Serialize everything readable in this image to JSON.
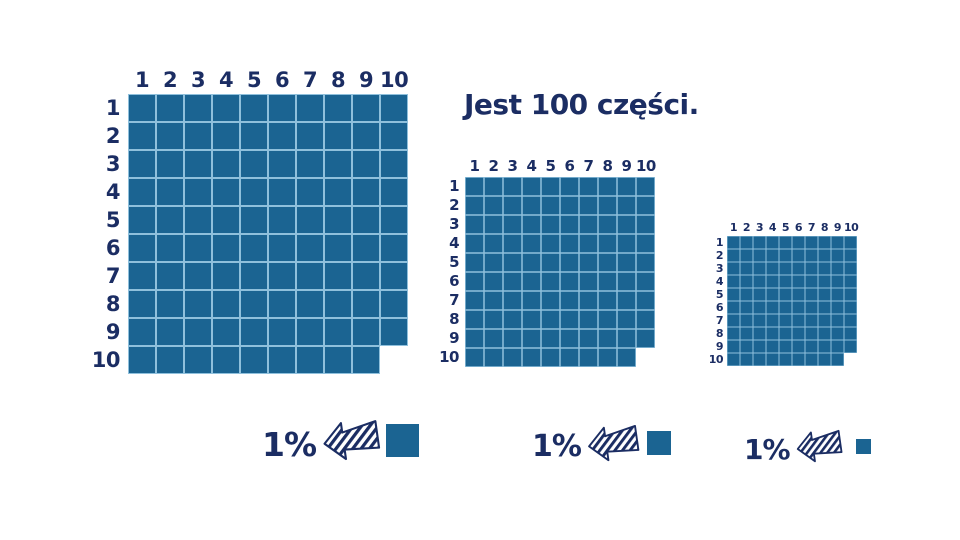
{
  "title": "Jest 100 części.",
  "colors": {
    "cell_blue": "#1b6492",
    "text_navy": "#1b2d63",
    "grid_line": "#8fc0dc"
  },
  "grids": [
    {
      "name": "large",
      "col_labels": [
        "1",
        "2",
        "3",
        "4",
        "5",
        "6",
        "7",
        "8",
        "9",
        "10"
      ],
      "row_labels": [
        "1",
        "2",
        "3",
        "4",
        "5",
        "6",
        "7",
        "8",
        "9",
        "10"
      ],
      "missing_cell": {
        "row": 10,
        "col": 10
      },
      "percent": {
        "label": "1%",
        "icon": "striped-arrow-left-icon"
      }
    },
    {
      "name": "medium",
      "col_labels": [
        "1",
        "2",
        "3",
        "4",
        "5",
        "6",
        "7",
        "8",
        "9",
        "10"
      ],
      "row_labels": [
        "1",
        "2",
        "3",
        "4",
        "5",
        "6",
        "7",
        "8",
        "9",
        "10"
      ],
      "missing_cell": {
        "row": 10,
        "col": 10
      },
      "percent": {
        "label": "1%",
        "icon": "striped-arrow-left-icon"
      }
    },
    {
      "name": "small",
      "col_labels": [
        "1",
        "2",
        "3",
        "4",
        "5",
        "6",
        "7",
        "8",
        "9",
        "10"
      ],
      "row_labels": [
        "1",
        "2",
        "3",
        "4",
        "5",
        "6",
        "7",
        "8",
        "9",
        "10"
      ],
      "missing_cell": {
        "row": 10,
        "col": 10
      },
      "percent": {
        "label": "1%",
        "icon": "striped-arrow-left-icon"
      }
    }
  ]
}
